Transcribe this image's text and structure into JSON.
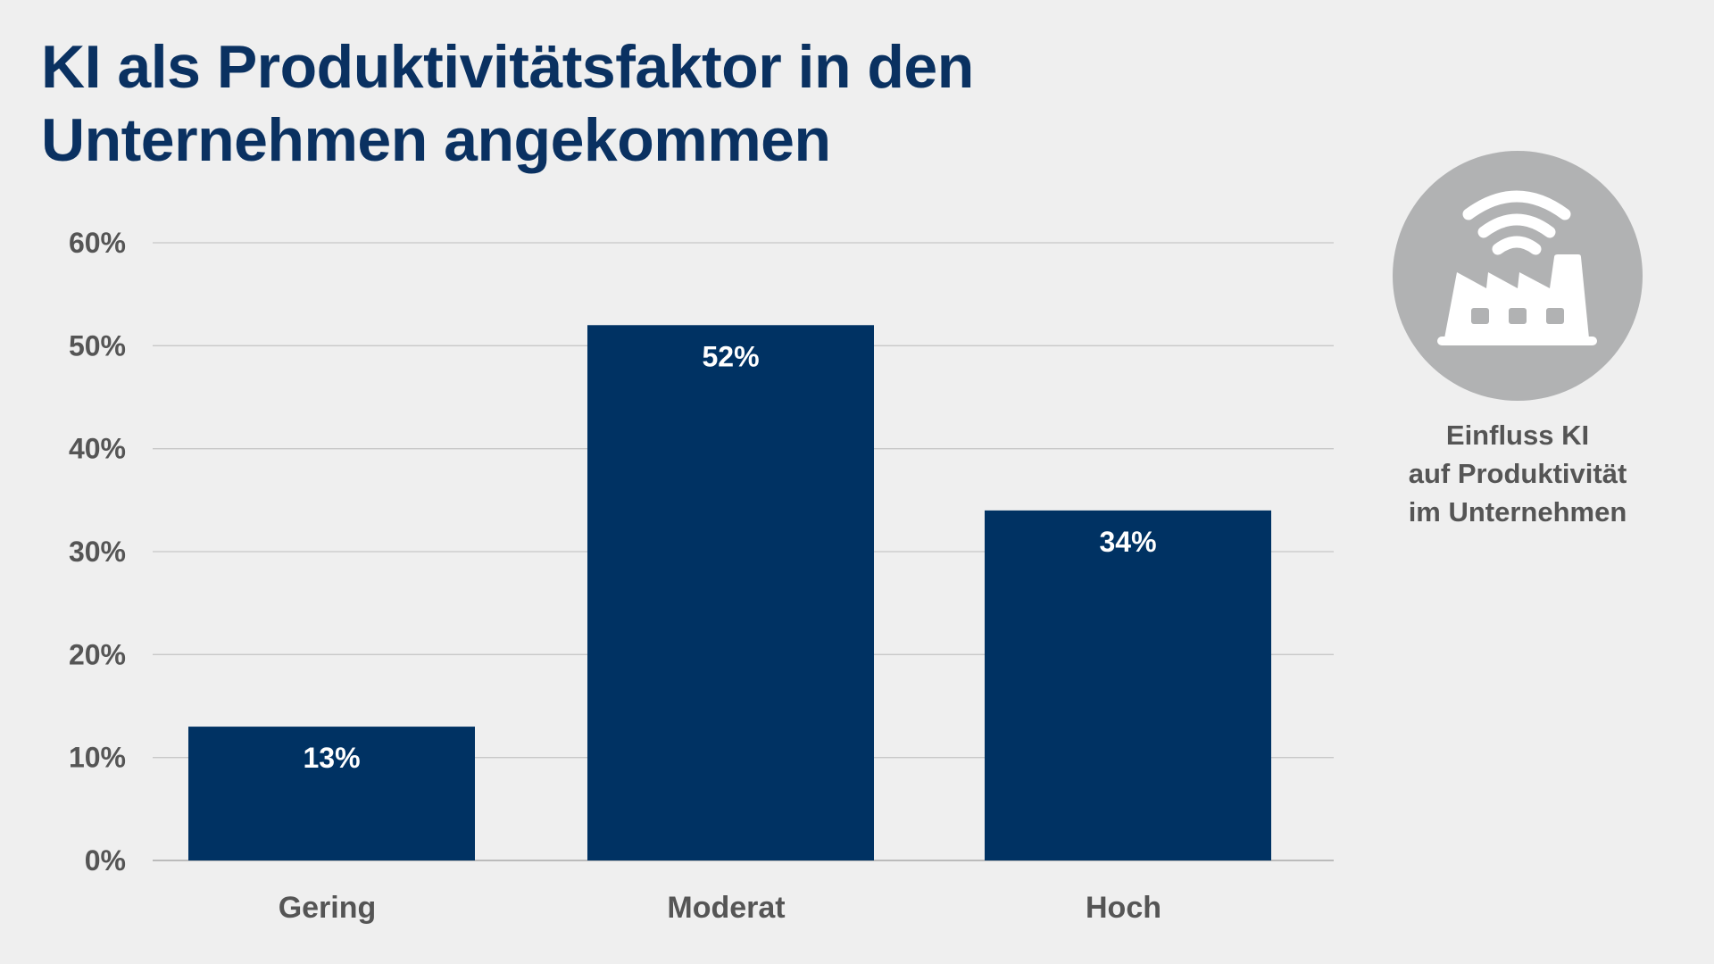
{
  "title_lines": [
    "KI als Produktivitätsfaktor in den",
    "Unternehmen angekommen"
  ],
  "caption_lines": [
    "Einfluss KI",
    "auf Produktivität",
    "im Unternehmen"
  ],
  "icon": "factory-wifi-icon",
  "colors": {
    "bar": "#003263",
    "title": "#0a3161",
    "icon_circle": "#b1b2b3",
    "grid": "#c8c8c8",
    "background": "#efefef"
  },
  "chart_data": {
    "type": "bar",
    "title": "KI als Produktivitätsfaktor in den Unternehmen angekommen",
    "categories": [
      "Gering",
      "Moderat",
      "Hoch"
    ],
    "values": [
      13,
      52,
      34
    ],
    "data_labels": [
      "13%",
      "52%",
      "34%"
    ],
    "yticks": [
      "0%",
      "10%",
      "20%",
      "30%",
      "40%",
      "50%",
      "60%"
    ],
    "ylim": [
      0,
      60
    ],
    "xlabel": "",
    "ylabel": "",
    "grid": true
  }
}
